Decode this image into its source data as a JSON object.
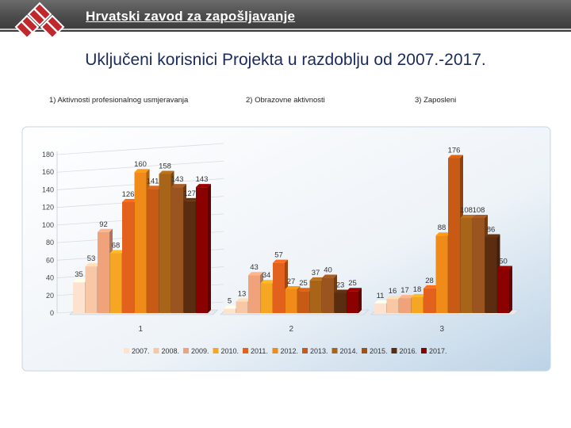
{
  "header": {
    "org_name": "Hrvatski zavod za zapošljavanje"
  },
  "slide": {
    "title": "Uključeni korisnici Projekta u razdoblju od 2007.-2017.",
    "category_headings": [
      "1) Aktivnosti profesionalnog usmjeravanja",
      "2) Obrazovne aktivnosti",
      "3) Zaposleni"
    ]
  },
  "chart_data": {
    "type": "bar",
    "categories": [
      "1",
      "2",
      "3"
    ],
    "ylim": [
      0,
      180
    ],
    "yticks": [
      0,
      20,
      40,
      60,
      80,
      100,
      120,
      140,
      160,
      180
    ],
    "legend_position": "bottom",
    "grid": true,
    "series": [
      {
        "name": "2007.",
        "color": "#fde3cf",
        "values": [
          35,
          5,
          11
        ]
      },
      {
        "name": "2008.",
        "color": "#f7c7a6",
        "values": [
          53,
          13,
          16
        ]
      },
      {
        "name": "2009.",
        "color": "#f0a27b",
        "values": [
          92,
          43,
          17
        ]
      },
      {
        "name": "2010.",
        "color": "#f5a623",
        "values": [
          68,
          34,
          18
        ]
      },
      {
        "name": "2011.",
        "color": "#e2611d",
        "values": [
          126,
          57,
          28
        ]
      },
      {
        "name": "2012.",
        "color": "#f08a18",
        "values": [
          160,
          27,
          88
        ]
      },
      {
        "name": "2013.",
        "color": "#c75a14",
        "values": [
          141,
          25,
          176
        ]
      },
      {
        "name": "2014.",
        "color": "#a8651a",
        "values": [
          158,
          37,
          108
        ]
      },
      {
        "name": "2015.",
        "color": "#9a5420",
        "values": [
          143,
          40,
          108
        ]
      },
      {
        "name": "2016.",
        "color": "#5a2d10",
        "values": [
          127,
          23,
          86
        ]
      },
      {
        "name": "2017.",
        "color": "#8b0000",
        "values": [
          143,
          25,
          50
        ]
      }
    ]
  }
}
